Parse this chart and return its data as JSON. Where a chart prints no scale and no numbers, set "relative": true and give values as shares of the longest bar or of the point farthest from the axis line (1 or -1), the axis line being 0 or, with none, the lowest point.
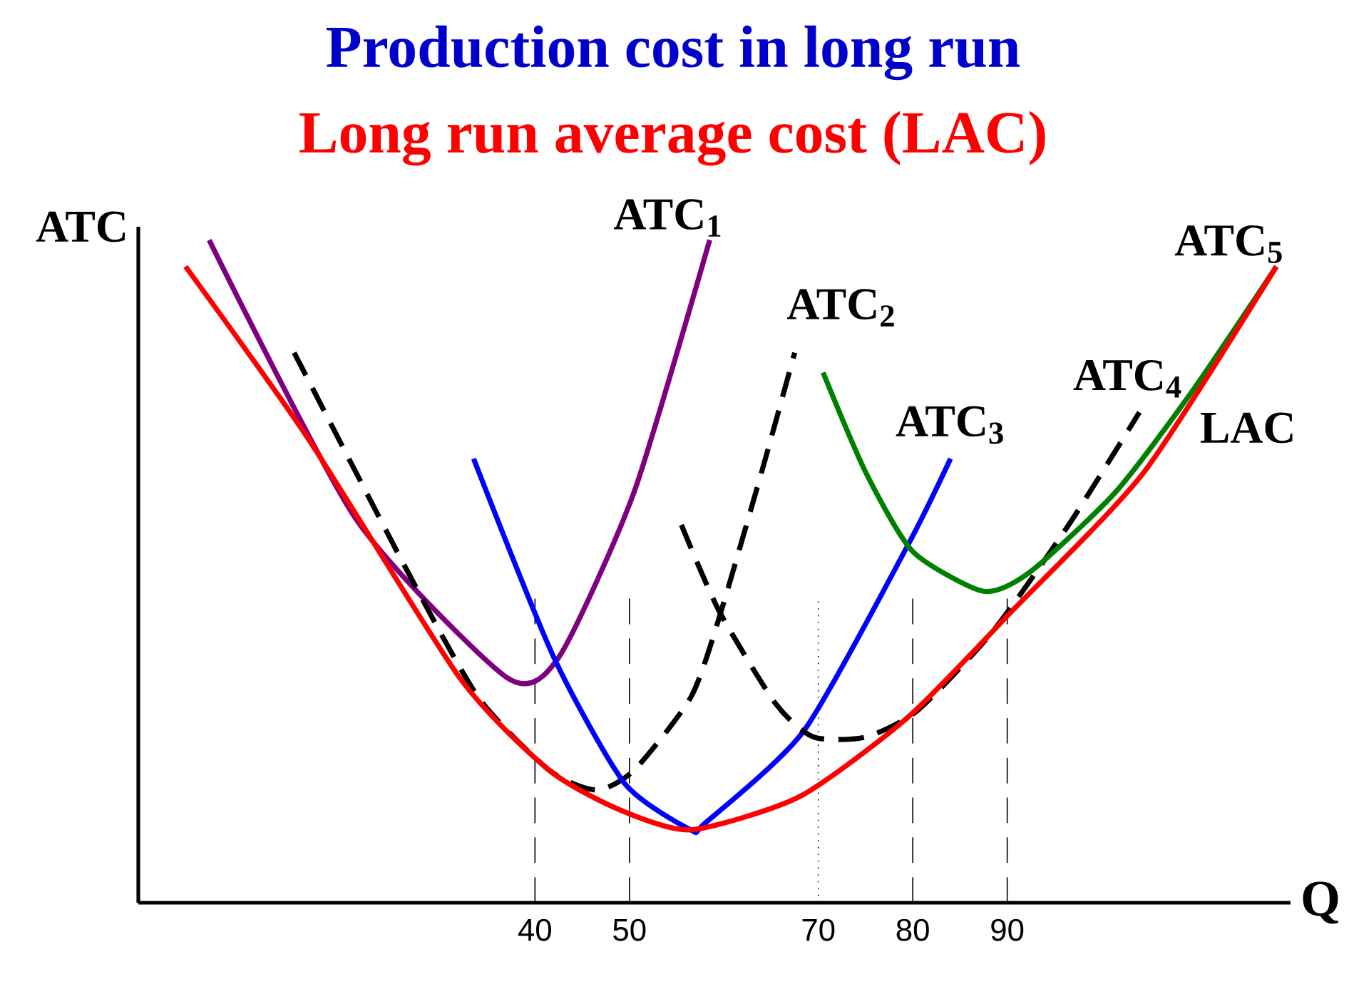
{
  "chart_data": {
    "type": "line",
    "title": "Production cost in long run",
    "subtitle": "Long run average cost (LAC)",
    "xlabel": "Q",
    "ylabel": "ATC",
    "relative": true,
    "xlim": [
      -2,
      120
    ],
    "xticks": [
      40,
      50,
      70,
      80,
      90
    ],
    "series": [
      {
        "name": "ATC$_{1}$",
        "color": "#7f007f",
        "x": [
          5.5,
          21,
          37,
          42.5,
          50.5,
          58.5
        ],
        "values": [
          1.0,
          0.58,
          0.34,
          0.37,
          0.62,
          1.0
        ]
      },
      {
        "name": "ATC$_{2}$",
        "color": "#000000",
        "line_style": "dashed",
        "x": [
          14.5,
          26.5,
          34,
          41.5,
          46.5,
          50.5,
          56.5,
          59.5,
          64,
          67.5
        ],
        "values": [
          0.83,
          0.5,
          0.31,
          0.2,
          0.17,
          0.2,
          0.31,
          0.43,
          0.65,
          0.83
        ]
      },
      {
        "name": "ATC$_{3}$",
        "color": "#0000ff",
        "x": [
          33.5,
          42,
          49.5,
          56.5,
          58,
          68.5,
          79.5,
          84
        ],
        "values": [
          0.67,
          0.37,
          0.18,
          0.11,
          0.12,
          0.26,
          0.54,
          0.67
        ]
      },
      {
        "name": "ATC$_{4}$",
        "color": "#000000",
        "line_style": "dashed",
        "x": [
          55.5,
          59.5,
          65.5,
          69.5,
          75,
          80.5,
          88.5,
          96.5,
          104
        ],
        "values": [
          0.57,
          0.44,
          0.3,
          0.25,
          0.25,
          0.29,
          0.41,
          0.57,
          0.74
        ]
      },
      {
        "name": "ATC$_{5}$",
        "color": "#008000",
        "x": [
          70.5,
          75,
          80,
          87.5,
          92.5,
          101.5,
          109.5,
          118.5
        ],
        "values": [
          0.8,
          0.65,
          0.53,
          0.47,
          0.5,
          0.62,
          0.77,
          0.96
        ]
      },
      {
        "name": "LAC",
        "color": "#ff0000",
        "x": [
          3,
          16,
          32,
          41.5,
          49,
          56.5,
          68,
          79.5,
          90.5,
          104.5,
          118.5
        ],
        "values": [
          0.96,
          0.7,
          0.34,
          0.2,
          0.14,
          0.11,
          0.16,
          0.28,
          0.44,
          0.65,
          0.96
        ]
      }
    ],
    "ref_lines": [
      {
        "axis": "x",
        "value": 40,
        "line_style": "dashed"
      },
      {
        "axis": "x",
        "value": 50,
        "line_style": "dashed"
      },
      {
        "axis": "x",
        "value": 70,
        "line_style": "dotted"
      },
      {
        "axis": "x",
        "value": 80,
        "line_style": "dashed"
      },
      {
        "axis": "x",
        "value": 90,
        "line_style": "dashed"
      }
    ]
  }
}
